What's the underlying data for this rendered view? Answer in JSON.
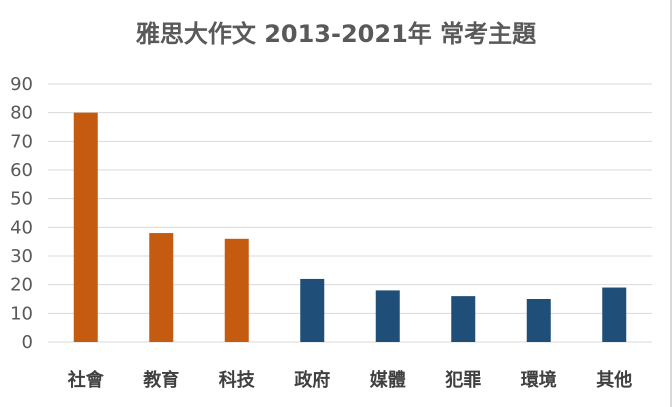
{
  "chart_data": {
    "type": "bar",
    "title": "雅思大作文 2013-2021年 常考主題",
    "xlabel": "",
    "ylabel": "",
    "ylim": [
      0,
      90
    ],
    "yticks": [
      0,
      10,
      20,
      30,
      40,
      50,
      60,
      70,
      80,
      90
    ],
    "grid": true,
    "legend": "none",
    "categories": [
      "社會",
      "教育",
      "科技",
      "政府",
      "媒體",
      "犯罪",
      "環境",
      "其他"
    ],
    "values": [
      80,
      38,
      36,
      22,
      18,
      16,
      15,
      19
    ],
    "colors": [
      "#c55a11",
      "#c55a11",
      "#c55a11",
      "#1f4e79",
      "#1f4e79",
      "#1f4e79",
      "#1f4e79",
      "#1f4e79"
    ]
  }
}
